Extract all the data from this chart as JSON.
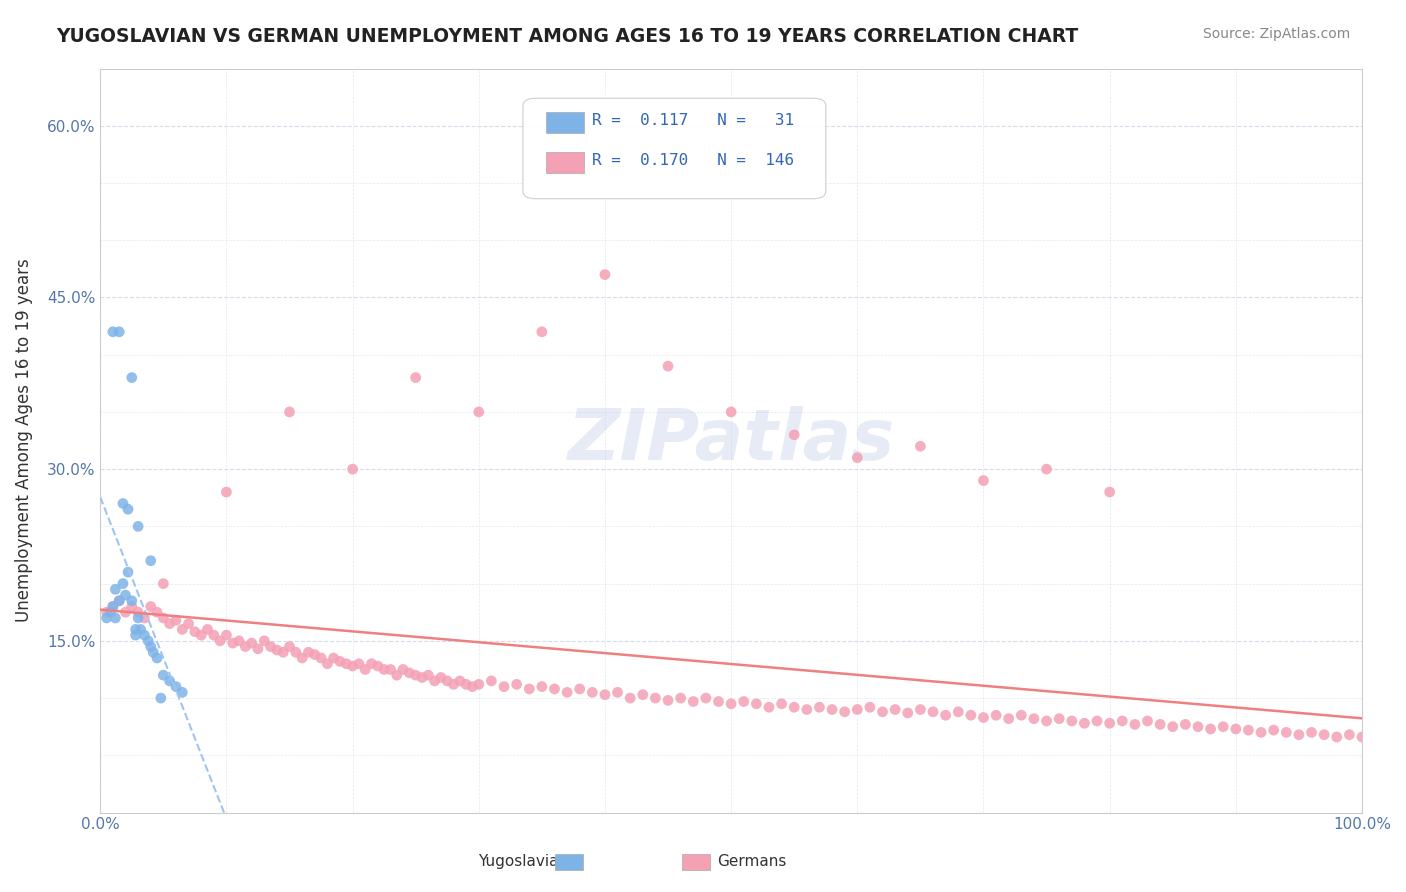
{
  "title": "YUGOSLAVIAN VS GERMAN UNEMPLOYMENT AMONG AGES 16 TO 19 YEARS CORRELATION CHART",
  "source_text": "Source: ZipAtlas.com",
  "xlabel": "",
  "ylabel": "Unemployment Among Ages 16 to 19 years",
  "xlim": [
    0.0,
    1.0
  ],
  "ylim": [
    0.0,
    0.65
  ],
  "xtick_labels": [
    "0.0%",
    "100.0%"
  ],
  "ytick_labels": [
    "15.0%",
    "30.0%",
    "45.0%",
    "60.0%"
  ],
  "ytick_values": [
    0.15,
    0.3,
    0.45,
    0.6
  ],
  "legend_r_yugo": "0.117",
  "legend_n_yugo": "31",
  "legend_r_german": "0.170",
  "legend_n_german": "146",
  "color_yugo": "#7eb3e8",
  "color_german": "#f4a0b5",
  "color_yugo_line": "#a0c4f0",
  "color_german_line": "#f08080",
  "watermark": "ZIPatlas",
  "background_color": "#ffffff",
  "grid_color": "#d0d8e8",
  "yugo_x": [
    0.005,
    0.008,
    0.01,
    0.012,
    0.015,
    0.018,
    0.02,
    0.022,
    0.025,
    0.028,
    0.03,
    0.032,
    0.035,
    0.038,
    0.04,
    0.042,
    0.045,
    0.048,
    0.05,
    0.055,
    0.06,
    0.065,
    0.01,
    0.015,
    0.025,
    0.03,
    0.018,
    0.022,
    0.04,
    0.012,
    0.028
  ],
  "yugo_y": [
    0.17,
    0.175,
    0.18,
    0.195,
    0.185,
    0.2,
    0.19,
    0.21,
    0.185,
    0.16,
    0.17,
    0.16,
    0.155,
    0.15,
    0.145,
    0.14,
    0.135,
    0.1,
    0.12,
    0.115,
    0.11,
    0.105,
    0.42,
    0.42,
    0.38,
    0.25,
    0.27,
    0.265,
    0.22,
    0.17,
    0.155
  ],
  "german_x": [
    0.005,
    0.01,
    0.015,
    0.02,
    0.025,
    0.03,
    0.035,
    0.04,
    0.045,
    0.05,
    0.055,
    0.06,
    0.065,
    0.07,
    0.075,
    0.08,
    0.085,
    0.09,
    0.095,
    0.1,
    0.105,
    0.11,
    0.115,
    0.12,
    0.125,
    0.13,
    0.135,
    0.14,
    0.145,
    0.15,
    0.155,
    0.16,
    0.165,
    0.17,
    0.175,
    0.18,
    0.185,
    0.19,
    0.195,
    0.2,
    0.205,
    0.21,
    0.215,
    0.22,
    0.225,
    0.23,
    0.235,
    0.24,
    0.245,
    0.25,
    0.255,
    0.26,
    0.265,
    0.27,
    0.275,
    0.28,
    0.285,
    0.29,
    0.295,
    0.3,
    0.31,
    0.32,
    0.33,
    0.34,
    0.35,
    0.36,
    0.37,
    0.38,
    0.39,
    0.4,
    0.41,
    0.42,
    0.43,
    0.44,
    0.45,
    0.46,
    0.47,
    0.48,
    0.49,
    0.5,
    0.51,
    0.52,
    0.53,
    0.54,
    0.55,
    0.56,
    0.57,
    0.58,
    0.59,
    0.6,
    0.61,
    0.62,
    0.63,
    0.64,
    0.65,
    0.66,
    0.67,
    0.68,
    0.69,
    0.7,
    0.71,
    0.72,
    0.73,
    0.74,
    0.75,
    0.76,
    0.77,
    0.78,
    0.79,
    0.8,
    0.81,
    0.82,
    0.83,
    0.84,
    0.85,
    0.86,
    0.87,
    0.88,
    0.89,
    0.9,
    0.91,
    0.92,
    0.93,
    0.94,
    0.95,
    0.96,
    0.97,
    0.98,
    0.99,
    1.0,
    0.05,
    0.1,
    0.15,
    0.2,
    0.25,
    0.3,
    0.35,
    0.4,
    0.45,
    0.5,
    0.55,
    0.6,
    0.65,
    0.7,
    0.75,
    0.8
  ],
  "german_y": [
    0.175,
    0.18,
    0.185,
    0.175,
    0.18,
    0.175,
    0.17,
    0.18,
    0.175,
    0.17,
    0.165,
    0.168,
    0.16,
    0.165,
    0.158,
    0.155,
    0.16,
    0.155,
    0.15,
    0.155,
    0.148,
    0.15,
    0.145,
    0.148,
    0.143,
    0.15,
    0.145,
    0.142,
    0.14,
    0.145,
    0.14,
    0.135,
    0.14,
    0.138,
    0.135,
    0.13,
    0.135,
    0.132,
    0.13,
    0.128,
    0.13,
    0.125,
    0.13,
    0.128,
    0.125,
    0.125,
    0.12,
    0.125,
    0.122,
    0.12,
    0.118,
    0.12,
    0.115,
    0.118,
    0.115,
    0.112,
    0.115,
    0.112,
    0.11,
    0.112,
    0.115,
    0.11,
    0.112,
    0.108,
    0.11,
    0.108,
    0.105,
    0.108,
    0.105,
    0.103,
    0.105,
    0.1,
    0.103,
    0.1,
    0.098,
    0.1,
    0.097,
    0.1,
    0.097,
    0.095,
    0.097,
    0.095,
    0.092,
    0.095,
    0.092,
    0.09,
    0.092,
    0.09,
    0.088,
    0.09,
    0.092,
    0.088,
    0.09,
    0.087,
    0.09,
    0.088,
    0.085,
    0.088,
    0.085,
    0.083,
    0.085,
    0.082,
    0.085,
    0.082,
    0.08,
    0.082,
    0.08,
    0.078,
    0.08,
    0.078,
    0.08,
    0.077,
    0.08,
    0.077,
    0.075,
    0.077,
    0.075,
    0.073,
    0.075,
    0.073,
    0.072,
    0.07,
    0.072,
    0.07,
    0.068,
    0.07,
    0.068,
    0.066,
    0.068,
    0.066,
    0.2,
    0.28,
    0.35,
    0.3,
    0.38,
    0.35,
    0.42,
    0.47,
    0.39,
    0.35,
    0.33,
    0.31,
    0.32,
    0.29,
    0.3,
    0.28
  ]
}
